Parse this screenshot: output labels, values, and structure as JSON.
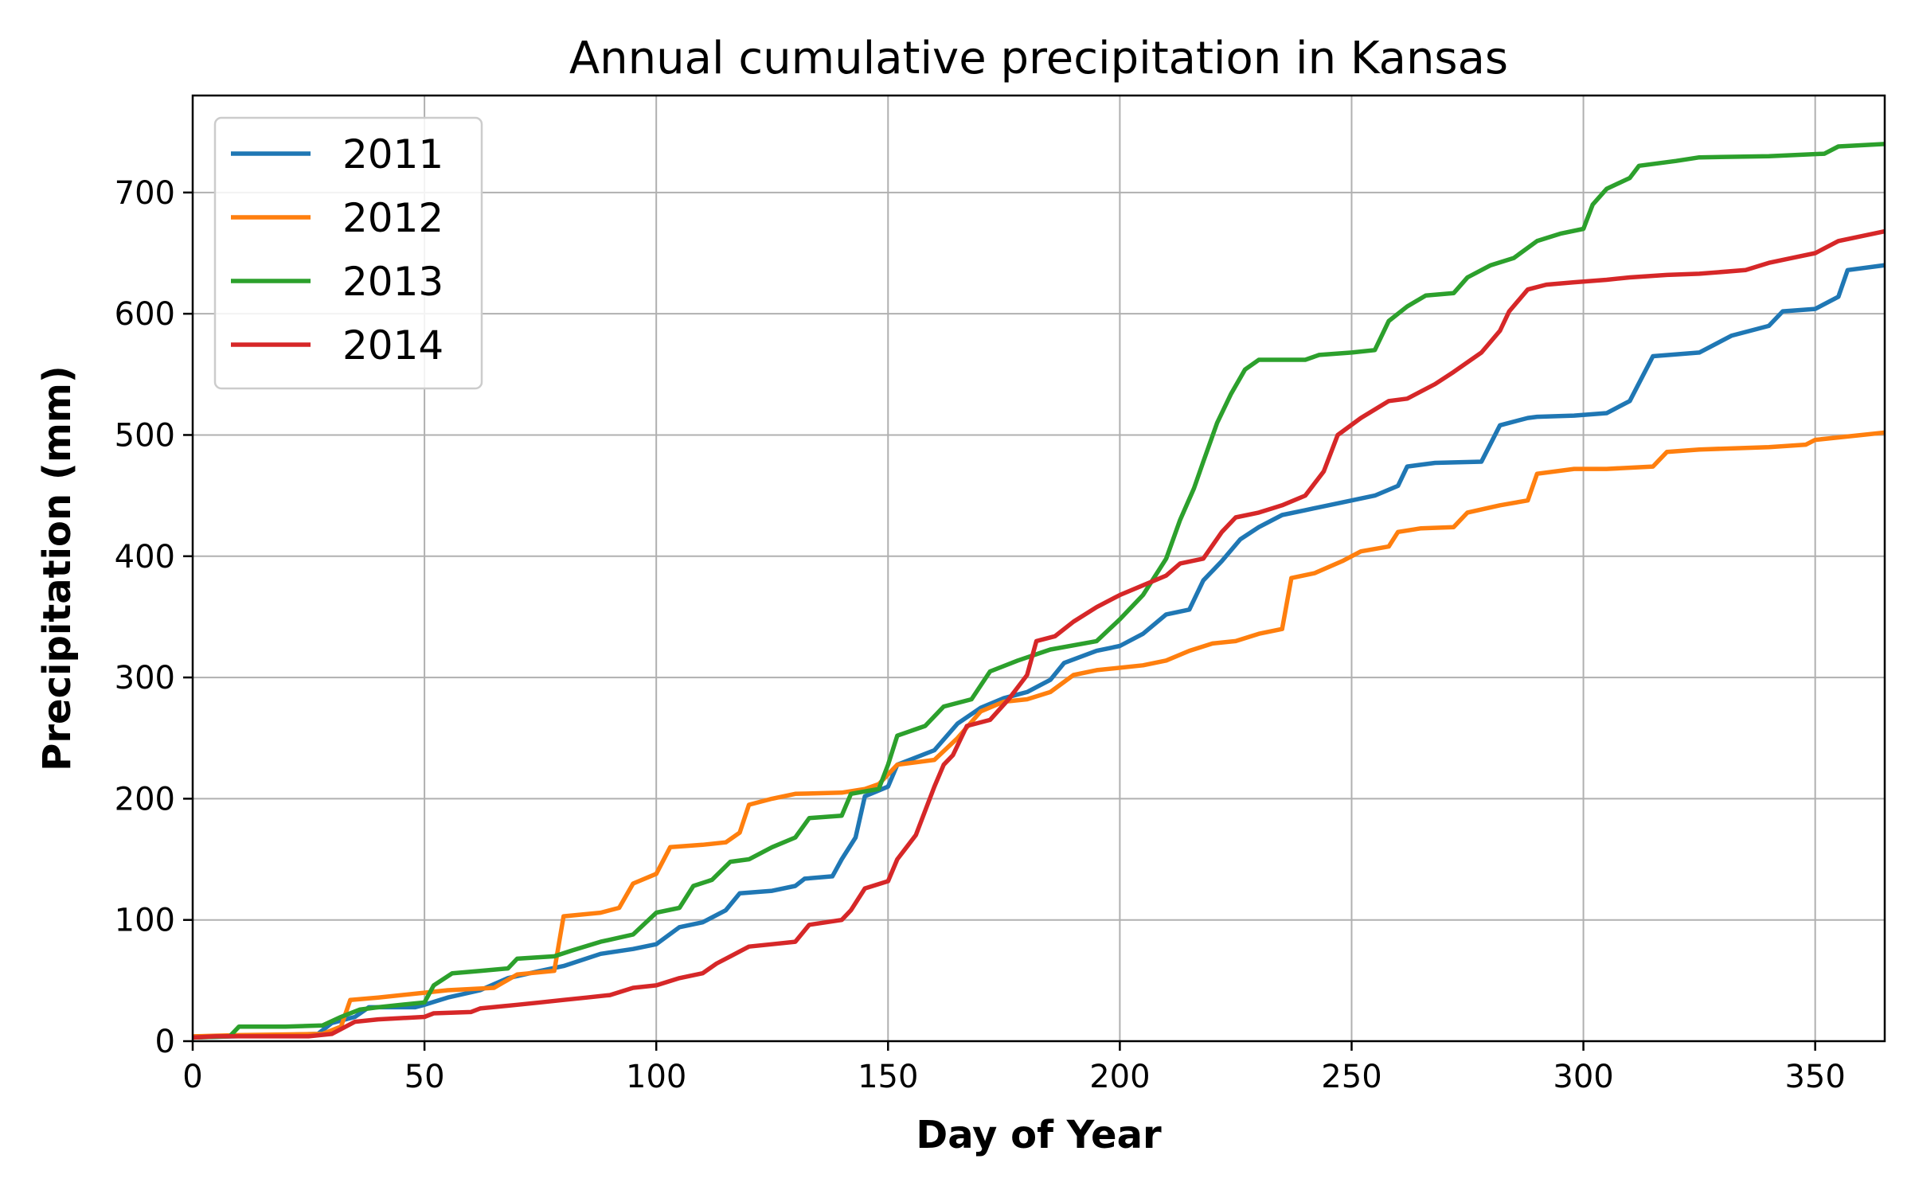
{
  "chart_data": {
    "type": "line",
    "title": "Annual cumulative precipitation in Kansas",
    "xlabel": "Day of Year",
    "ylabel": "Precipitation (mm)",
    "xlim": [
      0,
      365
    ],
    "ylim": [
      0,
      780
    ],
    "xticks": [
      0,
      50,
      100,
      150,
      200,
      250,
      300,
      350
    ],
    "yticks": [
      0,
      100,
      200,
      300,
      400,
      500,
      600,
      700
    ],
    "grid": true,
    "legend_position": "top-left",
    "series": [
      {
        "name": "2011",
        "color": "#1f77b4",
        "points": [
          [
            0,
            3
          ],
          [
            9,
            4
          ],
          [
            27,
            6
          ],
          [
            30,
            15
          ],
          [
            35,
            20
          ],
          [
            38,
            28
          ],
          [
            48,
            28
          ],
          [
            50,
            30
          ],
          [
            55,
            36
          ],
          [
            62,
            42
          ],
          [
            68,
            52
          ],
          [
            75,
            58
          ],
          [
            80,
            62
          ],
          [
            88,
            72
          ],
          [
            95,
            76
          ],
          [
            100,
            80
          ],
          [
            105,
            94
          ],
          [
            110,
            98
          ],
          [
            115,
            108
          ],
          [
            118,
            122
          ],
          [
            125,
            124
          ],
          [
            130,
            128
          ],
          [
            132,
            134
          ],
          [
            138,
            136
          ],
          [
            140,
            150
          ],
          [
            143,
            168
          ],
          [
            145,
            202
          ],
          [
            150,
            210
          ],
          [
            152,
            228
          ],
          [
            160,
            240
          ],
          [
            165,
            262
          ],
          [
            170,
            275
          ],
          [
            175,
            283
          ],
          [
            180,
            288
          ],
          [
            185,
            298
          ],
          [
            188,
            312
          ],
          [
            195,
            322
          ],
          [
            200,
            326
          ],
          [
            205,
            336
          ],
          [
            210,
            352
          ],
          [
            215,
            356
          ],
          [
            218,
            380
          ],
          [
            222,
            396
          ],
          [
            226,
            414
          ],
          [
            230,
            424
          ],
          [
            235,
            434
          ],
          [
            240,
            438
          ],
          [
            245,
            442
          ],
          [
            250,
            446
          ],
          [
            255,
            450
          ],
          [
            260,
            458
          ],
          [
            262,
            474
          ],
          [
            268,
            477
          ],
          [
            278,
            478
          ],
          [
            282,
            508
          ],
          [
            288,
            514
          ],
          [
            290,
            515
          ],
          [
            298,
            516
          ],
          [
            305,
            518
          ],
          [
            310,
            528
          ],
          [
            315,
            565
          ],
          [
            325,
            568
          ],
          [
            332,
            582
          ],
          [
            340,
            590
          ],
          [
            343,
            602
          ],
          [
            350,
            604
          ],
          [
            355,
            614
          ],
          [
            357,
            636
          ],
          [
            365,
            640
          ]
        ]
      },
      {
        "name": "2012",
        "color": "#ff7f0e",
        "points": [
          [
            0,
            4
          ],
          [
            10,
            5
          ],
          [
            28,
            6
          ],
          [
            32,
            12
          ],
          [
            34,
            34
          ],
          [
            40,
            36
          ],
          [
            50,
            40
          ],
          [
            55,
            42
          ],
          [
            65,
            44
          ],
          [
            70,
            55
          ],
          [
            78,
            58
          ],
          [
            80,
            103
          ],
          [
            88,
            106
          ],
          [
            92,
            110
          ],
          [
            95,
            130
          ],
          [
            100,
            138
          ],
          [
            103,
            160
          ],
          [
            110,
            162
          ],
          [
            115,
            164
          ],
          [
            118,
            172
          ],
          [
            120,
            195
          ],
          [
            125,
            200
          ],
          [
            130,
            204
          ],
          [
            140,
            205
          ],
          [
            145,
            208
          ],
          [
            148,
            212
          ],
          [
            152,
            228
          ],
          [
            160,
            232
          ],
          [
            165,
            250
          ],
          [
            170,
            272
          ],
          [
            175,
            280
          ],
          [
            180,
            282
          ],
          [
            185,
            288
          ],
          [
            190,
            302
          ],
          [
            195,
            306
          ],
          [
            205,
            310
          ],
          [
            210,
            314
          ],
          [
            215,
            322
          ],
          [
            220,
            328
          ],
          [
            225,
            330
          ],
          [
            230,
            336
          ],
          [
            235,
            340
          ],
          [
            237,
            382
          ],
          [
            242,
            386
          ],
          [
            248,
            396
          ],
          [
            252,
            404
          ],
          [
            258,
            408
          ],
          [
            260,
            420
          ],
          [
            265,
            423
          ],
          [
            272,
            424
          ],
          [
            275,
            436
          ],
          [
            282,
            442
          ],
          [
            288,
            446
          ],
          [
            290,
            468
          ],
          [
            298,
            472
          ],
          [
            305,
            472
          ],
          [
            315,
            474
          ],
          [
            318,
            486
          ],
          [
            325,
            488
          ],
          [
            340,
            490
          ],
          [
            348,
            492
          ],
          [
            350,
            496
          ],
          [
            360,
            500
          ],
          [
            365,
            502
          ]
        ]
      },
      {
        "name": "2013",
        "color": "#2ca02c",
        "points": [
          [
            0,
            3
          ],
          [
            8,
            4
          ],
          [
            10,
            12
          ],
          [
            20,
            12
          ],
          [
            28,
            13
          ],
          [
            32,
            20
          ],
          [
            36,
            26
          ],
          [
            40,
            28
          ],
          [
            50,
            32
          ],
          [
            52,
            46
          ],
          [
            56,
            56
          ],
          [
            62,
            58
          ],
          [
            68,
            60
          ],
          [
            70,
            68
          ],
          [
            78,
            70
          ],
          [
            82,
            75
          ],
          [
            88,
            82
          ],
          [
            95,
            88
          ],
          [
            100,
            106
          ],
          [
            105,
            110
          ],
          [
            108,
            128
          ],
          [
            112,
            133
          ],
          [
            116,
            148
          ],
          [
            120,
            150
          ],
          [
            125,
            160
          ],
          [
            130,
            168
          ],
          [
            133,
            184
          ],
          [
            140,
            186
          ],
          [
            142,
            204
          ],
          [
            148,
            208
          ],
          [
            150,
            228
          ],
          [
            152,
            252
          ],
          [
            158,
            260
          ],
          [
            162,
            276
          ],
          [
            168,
            282
          ],
          [
            172,
            305
          ],
          [
            178,
            314
          ],
          [
            185,
            323
          ],
          [
            195,
            330
          ],
          [
            200,
            348
          ],
          [
            205,
            368
          ],
          [
            210,
            398
          ],
          [
            213,
            430
          ],
          [
            216,
            456
          ],
          [
            218,
            478
          ],
          [
            221,
            510
          ],
          [
            224,
            534
          ],
          [
            227,
            554
          ],
          [
            230,
            562
          ],
          [
            240,
            562
          ],
          [
            243,
            566
          ],
          [
            250,
            568
          ],
          [
            255,
            570
          ],
          [
            258,
            594
          ],
          [
            262,
            606
          ],
          [
            266,
            615
          ],
          [
            272,
            617
          ],
          [
            275,
            630
          ],
          [
            280,
            640
          ],
          [
            285,
            646
          ],
          [
            290,
            660
          ],
          [
            295,
            666
          ],
          [
            300,
            670
          ],
          [
            302,
            690
          ],
          [
            305,
            703
          ],
          [
            310,
            712
          ],
          [
            312,
            722
          ],
          [
            320,
            726
          ],
          [
            325,
            729
          ],
          [
            340,
            730
          ],
          [
            352,
            732
          ],
          [
            355,
            738
          ],
          [
            365,
            740
          ]
        ]
      },
      {
        "name": "2014",
        "color": "#d62728",
        "points": [
          [
            0,
            3
          ],
          [
            5,
            4
          ],
          [
            25,
            4
          ],
          [
            30,
            6
          ],
          [
            35,
            16
          ],
          [
            40,
            18
          ],
          [
            50,
            20
          ],
          [
            52,
            23
          ],
          [
            60,
            24
          ],
          [
            62,
            27
          ],
          [
            70,
            30
          ],
          [
            75,
            32
          ],
          [
            80,
            34
          ],
          [
            85,
            36
          ],
          [
            90,
            38
          ],
          [
            95,
            44
          ],
          [
            100,
            46
          ],
          [
            105,
            52
          ],
          [
            110,
            56
          ],
          [
            113,
            64
          ],
          [
            116,
            70
          ],
          [
            120,
            78
          ],
          [
            125,
            80
          ],
          [
            130,
            82
          ],
          [
            133,
            96
          ],
          [
            140,
            100
          ],
          [
            142,
            108
          ],
          [
            145,
            126
          ],
          [
            150,
            132
          ],
          [
            152,
            150
          ],
          [
            156,
            170
          ],
          [
            160,
            210
          ],
          [
            162,
            228
          ],
          [
            164,
            236
          ],
          [
            167,
            260
          ],
          [
            172,
            265
          ],
          [
            176,
            282
          ],
          [
            180,
            302
          ],
          [
            182,
            330
          ],
          [
            186,
            334
          ],
          [
            190,
            346
          ],
          [
            195,
            358
          ],
          [
            200,
            368
          ],
          [
            205,
            376
          ],
          [
            210,
            384
          ],
          [
            213,
            394
          ],
          [
            218,
            398
          ],
          [
            222,
            420
          ],
          [
            225,
            432
          ],
          [
            230,
            436
          ],
          [
            235,
            442
          ],
          [
            240,
            450
          ],
          [
            244,
            470
          ],
          [
            247,
            500
          ],
          [
            252,
            514
          ],
          [
            258,
            528
          ],
          [
            262,
            530
          ],
          [
            268,
            542
          ],
          [
            272,
            552
          ],
          [
            278,
            568
          ],
          [
            282,
            586
          ],
          [
            284,
            602
          ],
          [
            288,
            620
          ],
          [
            292,
            624
          ],
          [
            298,
            626
          ],
          [
            305,
            628
          ],
          [
            310,
            630
          ],
          [
            318,
            632
          ],
          [
            325,
            633
          ],
          [
            335,
            636
          ],
          [
            340,
            642
          ],
          [
            345,
            646
          ],
          [
            350,
            650
          ],
          [
            355,
            660
          ],
          [
            365,
            668
          ]
        ]
      }
    ]
  }
}
